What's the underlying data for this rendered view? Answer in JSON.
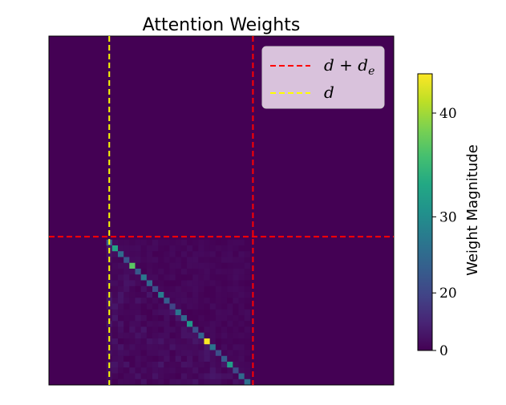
{
  "chart_data": {
    "type": "heatmap",
    "title": "Attention Weights",
    "colormap": "viridis",
    "grid_size": 60,
    "d": 10,
    "d_plus_de": 35,
    "colorbar": {
      "label": "Weight Magnitude",
      "range": [
        0,
        45
      ],
      "ticks": [
        0,
        20,
        30,
        40
      ],
      "tick_labels": [
        "0",
        "20",
        "30",
        "40"
      ],
      "scale": "nonlinear"
    },
    "diagonal_values": [
      23.5,
      32.8,
      25.1,
      21.9,
      36.9,
      22.4,
      27.0,
      24.3,
      20.8,
      27.6,
      23.1,
      19.7,
      26.2,
      24.7,
      31.2,
      21.3,
      23.9,
      44.8,
      26.6,
      21.2,
      23.0,
      31.9,
      20.6,
      25.0,
      25.6
    ],
    "offdiagonal_range": [
      0,
      6
    ],
    "legend": {
      "position": "upper right",
      "entries": [
        {
          "label": "d + d_e",
          "color": "#ff0000",
          "style": "dashed"
        },
        {
          "label": "d",
          "color": "#ffff00",
          "style": "dashed"
        }
      ]
    }
  }
}
